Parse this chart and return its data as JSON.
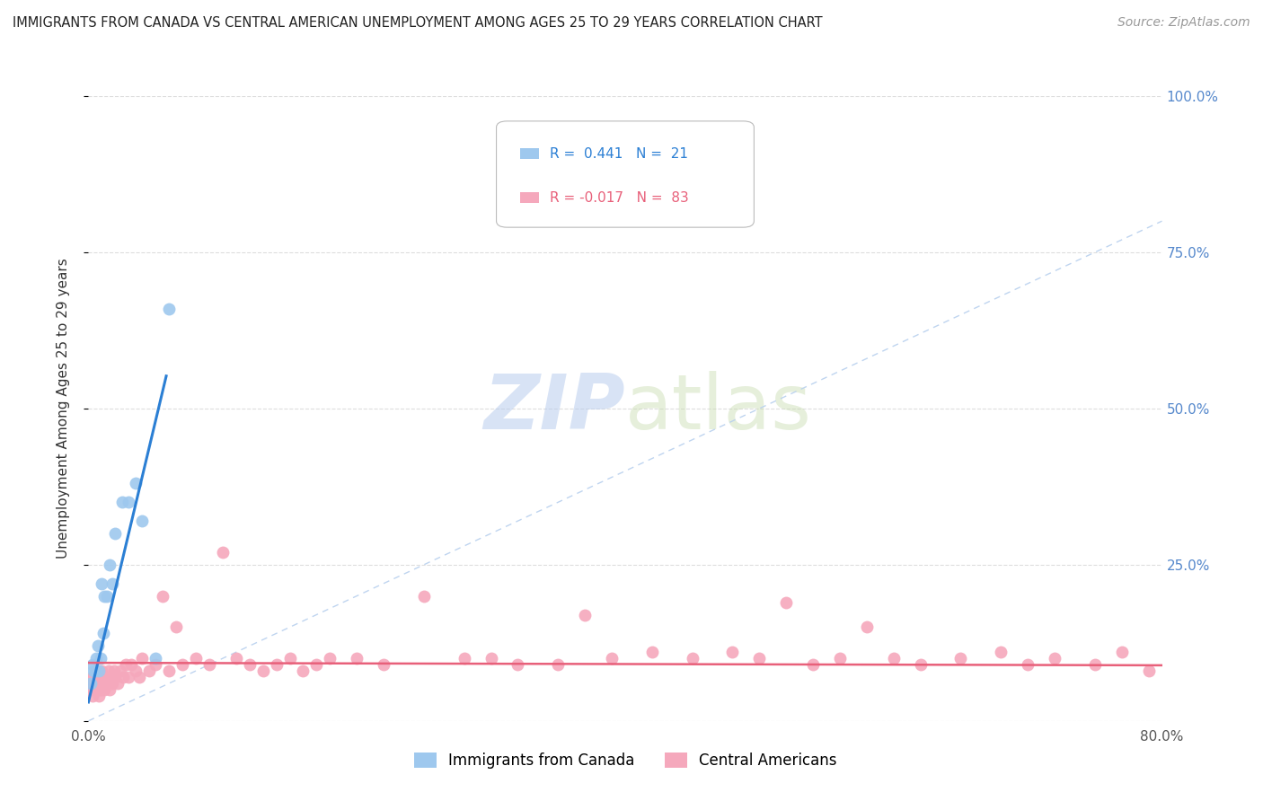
{
  "title": "IMMIGRANTS FROM CANADA VS CENTRAL AMERICAN UNEMPLOYMENT AMONG AGES 25 TO 29 YEARS CORRELATION CHART",
  "source": "Source: ZipAtlas.com",
  "ylabel": "Unemployment Among Ages 25 to 29 years",
  "watermark_zip": "ZIP",
  "watermark_atlas": "atlas",
  "xlim": [
    0.0,
    0.8
  ],
  "ylim": [
    0.0,
    1.0
  ],
  "xtick_positions": [
    0.0,
    0.8
  ],
  "xticklabels": [
    "0.0%",
    "80.0%"
  ],
  "ytick_positions": [
    0.0,
    0.25,
    0.5,
    0.75,
    1.0
  ],
  "yticklabels": [
    "",
    "25.0%",
    "50.0%",
    "75.0%",
    "100.0%"
  ],
  "canada_color": "#9EC8EE",
  "central_color": "#F5A8BC",
  "canada_trend_color": "#2B7FD4",
  "central_trend_color": "#E8607A",
  "diag_line_color": "#B8D0EE",
  "tick_color": "#5588CC",
  "R_canada": 0.441,
  "N_canada": 21,
  "R_central": -0.017,
  "N_central": 83,
  "canada_x": [
    0.002,
    0.003,
    0.004,
    0.005,
    0.006,
    0.007,
    0.008,
    0.009,
    0.01,
    0.011,
    0.012,
    0.014,
    0.016,
    0.018,
    0.02,
    0.025,
    0.03,
    0.035,
    0.04,
    0.05,
    0.06
  ],
  "canada_y": [
    0.06,
    0.09,
    0.08,
    0.08,
    0.1,
    0.12,
    0.08,
    0.1,
    0.22,
    0.14,
    0.2,
    0.2,
    0.25,
    0.22,
    0.3,
    0.35,
    0.35,
    0.38,
    0.32,
    0.1,
    0.66
  ],
  "central_x": [
    0.001,
    0.002,
    0.003,
    0.004,
    0.005,
    0.006,
    0.007,
    0.008,
    0.009,
    0.01,
    0.011,
    0.012,
    0.013,
    0.014,
    0.015,
    0.016,
    0.017,
    0.018,
    0.019,
    0.02,
    0.022,
    0.024,
    0.026,
    0.028,
    0.03,
    0.032,
    0.035,
    0.038,
    0.04,
    0.045,
    0.05,
    0.055,
    0.06,
    0.065,
    0.07,
    0.08,
    0.09,
    0.1,
    0.11,
    0.12,
    0.13,
    0.14,
    0.15,
    0.16,
    0.17,
    0.18,
    0.2,
    0.22,
    0.25,
    0.28,
    0.3,
    0.32,
    0.35,
    0.37,
    0.39,
    0.42,
    0.45,
    0.48,
    0.5,
    0.52,
    0.54,
    0.56,
    0.58,
    0.6,
    0.62,
    0.65,
    0.68,
    0.7,
    0.72,
    0.75,
    0.77,
    0.79,
    0.001,
    0.002,
    0.003,
    0.004,
    0.005,
    0.006,
    0.007,
    0.008,
    0.009,
    0.01,
    0.011
  ],
  "central_y": [
    0.06,
    0.05,
    0.07,
    0.06,
    0.05,
    0.08,
    0.06,
    0.07,
    0.05,
    0.08,
    0.06,
    0.05,
    0.07,
    0.06,
    0.08,
    0.05,
    0.07,
    0.06,
    0.08,
    0.07,
    0.06,
    0.08,
    0.07,
    0.09,
    0.07,
    0.09,
    0.08,
    0.07,
    0.1,
    0.08,
    0.09,
    0.2,
    0.08,
    0.15,
    0.09,
    0.1,
    0.09,
    0.27,
    0.1,
    0.09,
    0.08,
    0.09,
    0.1,
    0.08,
    0.09,
    0.1,
    0.1,
    0.09,
    0.2,
    0.1,
    0.1,
    0.09,
    0.09,
    0.17,
    0.1,
    0.11,
    0.1,
    0.11,
    0.1,
    0.19,
    0.09,
    0.1,
    0.15,
    0.1,
    0.09,
    0.1,
    0.11,
    0.09,
    0.1,
    0.09,
    0.11,
    0.08,
    0.05,
    0.06,
    0.04,
    0.07,
    0.05,
    0.08,
    0.06,
    0.04,
    0.05,
    0.07,
    0.06
  ]
}
